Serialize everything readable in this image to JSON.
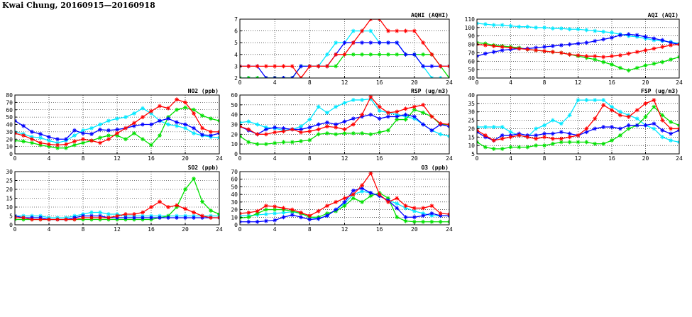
{
  "page": {
    "title": "Kwai Chung, 20160915—20160918"
  },
  "colors": {
    "red": "#ff0000",
    "green": "#00e000",
    "blue": "#0000ff",
    "cyan": "#00e8ff",
    "grid": "#000000"
  },
  "chart_data": [
    {
      "id": "aqhi",
      "type": "line",
      "title": "AQHI (AQHI)",
      "xlim": [
        0,
        24
      ],
      "xticks": [
        0,
        4,
        8,
        12,
        16,
        20,
        24
      ],
      "ylim": [
        2,
        7
      ],
      "yticks": [
        2,
        3,
        4,
        5,
        6,
        7
      ],
      "grid": true,
      "series": [
        {
          "color": "#00e8ff",
          "values": [
            2,
            2,
            2,
            2,
            2,
            2,
            2,
            3,
            3,
            3,
            4,
            5,
            5,
            6,
            6,
            6,
            5,
            5,
            5,
            4,
            4,
            3,
            2,
            2,
            1.6
          ]
        },
        {
          "color": "#00e000",
          "values": [
            2,
            2,
            2,
            2,
            2,
            2,
            2,
            3,
            3,
            3,
            3,
            3,
            4,
            4,
            4,
            4,
            4,
            4,
            4,
            4,
            4,
            4,
            4,
            3,
            2
          ]
        },
        {
          "color": "#0000ff",
          "values": [
            3,
            3,
            3,
            2,
            2,
            2,
            2,
            3,
            3,
            3,
            3,
            4,
            5,
            5,
            5,
            5,
            5,
            5,
            5,
            4,
            4,
            3,
            3,
            3,
            3
          ]
        },
        {
          "color": "#ff0000",
          "values": [
            3,
            3,
            3,
            3,
            3,
            3,
            3,
            2,
            3,
            3,
            3,
            4,
            4,
            5,
            6,
            7,
            7,
            6,
            6,
            6,
            6,
            5,
            4,
            3,
            3
          ]
        }
      ]
    },
    {
      "id": "aqi",
      "type": "line",
      "title": "AQI (AQI)",
      "xlim": [
        0,
        24
      ],
      "xticks": [
        0,
        4,
        8,
        12,
        16,
        20,
        24
      ],
      "ylim": [
        40,
        110
      ],
      "yticks": [
        40,
        50,
        60,
        70,
        80,
        90,
        100,
        110
      ],
      "grid": true,
      "series": [
        {
          "color": "#00e8ff",
          "values": [
            105,
            104,
            103,
            103,
            102,
            101,
            101,
            100,
            100,
            99,
            99,
            98,
            98,
            97,
            96,
            95,
            94,
            92,
            90,
            89,
            87,
            85,
            84,
            83,
            81
          ]
        },
        {
          "color": "#00e000",
          "values": [
            82,
            81,
            79,
            78,
            77,
            76,
            74,
            73,
            72,
            71,
            70,
            68,
            66,
            64,
            62,
            59,
            56,
            52,
            49,
            52,
            55,
            57,
            59,
            62,
            65
          ]
        },
        {
          "color": "#0000ff",
          "values": [
            66,
            69,
            71,
            73,
            74,
            75,
            75,
            76,
            77,
            78,
            79,
            80,
            81,
            82,
            84,
            86,
            88,
            91,
            92,
            91,
            89,
            87,
            85,
            82,
            80
          ]
        },
        {
          "color": "#ff0000",
          "values": [
            80,
            79,
            78,
            77,
            76,
            75,
            74,
            73,
            72,
            71,
            70,
            68,
            67,
            66,
            66,
            65,
            66,
            67,
            69,
            71,
            73,
            75,
            77,
            79,
            80
          ]
        }
      ]
    },
    {
      "id": "no2",
      "type": "line",
      "title": "NO2 (ppb)",
      "xlim": [
        0,
        24
      ],
      "xticks": [
        0,
        4,
        8,
        12,
        16,
        20,
        24
      ],
      "ylim": [
        0,
        80
      ],
      "yticks": [
        0,
        10,
        20,
        30,
        40,
        50,
        60,
        70,
        80
      ],
      "grid": true,
      "series": [
        {
          "color": "#00e8ff",
          "values": [
            30,
            27,
            23,
            22,
            18,
            15,
            18,
            25,
            32,
            35,
            40,
            45,
            48,
            50,
            55,
            62,
            55,
            45,
            40,
            38,
            35,
            28,
            25,
            23,
            22
          ]
        },
        {
          "color": "#00e000",
          "values": [
            18,
            17,
            15,
            12,
            10,
            8,
            8,
            12,
            15,
            18,
            22,
            25,
            25,
            20,
            28,
            20,
            12,
            25,
            50,
            60,
            63,
            60,
            52,
            48,
            45
          ]
        },
        {
          "color": "#0000ff",
          "values": [
            45,
            38,
            30,
            27,
            23,
            20,
            20,
            32,
            28,
            27,
            33,
            32,
            33,
            35,
            38,
            40,
            40,
            45,
            48,
            43,
            40,
            35,
            26,
            25,
            28
          ]
        },
        {
          "color": "#ff0000",
          "values": [
            28,
            25,
            20,
            15,
            13,
            12,
            13,
            17,
            20,
            18,
            15,
            20,
            28,
            35,
            42,
            50,
            58,
            65,
            62,
            74,
            70,
            55,
            35,
            30,
            30
          ]
        }
      ]
    },
    {
      "id": "rsp",
      "type": "line",
      "title": "RSP (ug/m3)",
      "xlim": [
        0,
        24
      ],
      "xticks": [
        0,
        4,
        8,
        12,
        16,
        20,
        24
      ],
      "ylim": [
        0,
        60
      ],
      "yticks": [
        0,
        10,
        20,
        30,
        40,
        50,
        60
      ],
      "grid": true,
      "series": [
        {
          "color": "#00e8ff",
          "values": [
            32,
            33,
            30,
            27,
            26,
            24,
            25,
            28,
            35,
            48,
            42,
            48,
            52,
            55,
            55,
            56,
            44,
            42,
            40,
            38,
            36,
            30,
            24,
            20,
            18
          ]
        },
        {
          "color": "#00e000",
          "values": [
            18,
            12,
            10,
            10,
            11,
            12,
            12,
            13,
            14,
            20,
            21,
            20,
            21,
            21,
            21,
            20,
            22,
            24,
            35,
            35,
            45,
            42,
            38,
            30,
            30
          ]
        },
        {
          "color": "#0000ff",
          "values": [
            28,
            24,
            20,
            25,
            27,
            26,
            25,
            25,
            27,
            30,
            32,
            30,
            33,
            36,
            38,
            40,
            36,
            38,
            38,
            40,
            38,
            30,
            24,
            30,
            28
          ]
        },
        {
          "color": "#ff0000",
          "values": [
            28,
            25,
            20,
            20,
            22,
            23,
            25,
            22,
            23,
            25,
            28,
            27,
            25,
            30,
            40,
            58,
            48,
            42,
            43,
            46,
            48,
            50,
            38,
            31,
            30
          ]
        }
      ]
    },
    {
      "id": "fsp",
      "type": "line",
      "title": "FSP (ug/m3)",
      "xlim": [
        0,
        24
      ],
      "xticks": [
        0,
        4,
        8,
        12,
        16,
        20,
        24
      ],
      "ylim": [
        5,
        40
      ],
      "yticks": [
        5,
        10,
        15,
        20,
        25,
        30,
        35,
        40
      ],
      "grid": true,
      "series": [
        {
          "color": "#00e8ff",
          "values": [
            21,
            21,
            21,
            21,
            18,
            16,
            15,
            20,
            22,
            25,
            23,
            28,
            37,
            37,
            37,
            37,
            33,
            30,
            28,
            26,
            22,
            20,
            15,
            13,
            12
          ]
        },
        {
          "color": "#00e000",
          "values": [
            12,
            9,
            8,
            8,
            9,
            9,
            9,
            10,
            10,
            11,
            12,
            12,
            12,
            12,
            11,
            11,
            13,
            16,
            20,
            22,
            27,
            33,
            28,
            24,
            22
          ]
        },
        {
          "color": "#0000ff",
          "values": [
            18,
            15,
            13,
            16,
            16,
            17,
            16,
            16,
            17,
            17,
            18,
            17,
            16,
            18,
            20,
            21,
            21,
            20,
            22,
            22,
            22,
            23,
            19,
            17,
            19
          ]
        },
        {
          "color": "#ff0000",
          "values": [
            19,
            16,
            13,
            14,
            15,
            16,
            15,
            14,
            15,
            14,
            14,
            15,
            16,
            20,
            26,
            34,
            31,
            28,
            27,
            31,
            35,
            37,
            25,
            20,
            20
          ]
        }
      ]
    },
    {
      "id": "so2",
      "type": "line",
      "title": "SO2 (ppb)",
      "xlim": [
        0,
        24
      ],
      "xticks": [
        0,
        4,
        8,
        12,
        16,
        20,
        24
      ],
      "ylim": [
        0,
        30
      ],
      "yticks": [
        0,
        5,
        10,
        15,
        20,
        25,
        30
      ],
      "grid": true,
      "series": [
        {
          "color": "#00e8ff",
          "values": [
            5,
            5,
            5,
            5,
            4,
            4,
            4,
            5,
            6,
            7,
            7,
            6,
            6,
            5,
            5,
            5,
            5,
            5,
            5,
            5,
            5,
            5,
            5,
            5,
            5
          ]
        },
        {
          "color": "#00e000",
          "values": [
            3,
            3,
            3,
            3,
            3,
            3,
            3,
            3,
            3,
            3,
            3,
            3,
            3,
            3,
            3,
            3,
            3,
            4,
            5,
            10,
            20,
            26,
            13,
            8,
            6
          ]
        },
        {
          "color": "#0000ff",
          "values": [
            5,
            4,
            4,
            4,
            3,
            3,
            3,
            4,
            5,
            5,
            5,
            4,
            4,
            4,
            4,
            4,
            4,
            4,
            4,
            4,
            4,
            4,
            4,
            4,
            4
          ]
        },
        {
          "color": "#ff0000",
          "values": [
            4,
            4,
            3,
            3,
            3,
            3,
            3,
            3,
            4,
            4,
            4,
            4,
            5,
            6,
            6,
            7,
            10,
            13,
            10,
            11,
            9,
            7,
            5,
            4,
            4
          ]
        }
      ]
    },
    {
      "id": "o3",
      "type": "line",
      "title": "O3 (ppb)",
      "xlim": [
        0,
        24
      ],
      "xticks": [
        0,
        4,
        8,
        12,
        16,
        20,
        24
      ],
      "ylim": [
        0,
        70
      ],
      "yticks": [
        0,
        10,
        20,
        30,
        40,
        50,
        60,
        70
      ],
      "grid": true,
      "series": [
        {
          "color": "#00e8ff",
          "values": [
            12,
            12,
            13,
            14,
            15,
            16,
            17,
            15,
            10,
            8,
            12,
            20,
            28,
            40,
            44,
            42,
            38,
            32,
            28,
            22,
            18,
            15,
            12,
            12,
            12
          ]
        },
        {
          "color": "#00e000",
          "values": [
            9,
            10,
            15,
            20,
            20,
            20,
            18,
            15,
            10,
            10,
            15,
            18,
            25,
            35,
            30,
            38,
            42,
            35,
            10,
            5,
            4,
            4,
            4,
            4,
            4
          ]
        },
        {
          "color": "#0000ff",
          "values": [
            4,
            4,
            4,
            5,
            6,
            10,
            13,
            10,
            7,
            8,
            12,
            20,
            30,
            45,
            48,
            42,
            38,
            32,
            22,
            10,
            10,
            12,
            15,
            12,
            12
          ]
        },
        {
          "color": "#ff0000",
          "values": [
            15,
            16,
            18,
            25,
            24,
            22,
            20,
            16,
            12,
            18,
            25,
            30,
            35,
            40,
            52,
            68,
            40,
            30,
            35,
            25,
            22,
            22,
            25,
            15,
            14
          ]
        }
      ]
    }
  ]
}
